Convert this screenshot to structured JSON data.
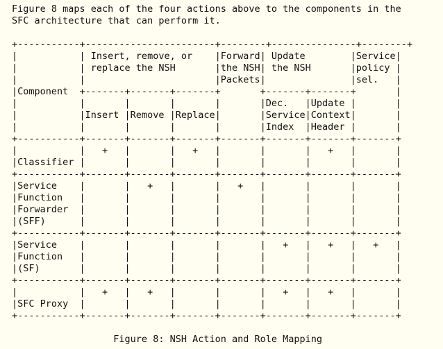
{
  "intro": "Figure 8 maps each of the four actions above to the components in the\nSFC architecture that can perform it.",
  "diagram": "+-----------+-----------------------+--------+---------------+--------+\n|           | Insert, remove, or    |Forward| Update        |Service|\n|           | replace the NSH       |the NSH| the NSH       |policy |\n|           |                       |Packets|               |sel.   |\n|Component  +-------+-------+-------+       +-------+-------+       |\n|           |       |       |       |       |Dec.   |Update |       |\n|           |Insert |Remove |Replace|       |Service|Context|       |\n|           |       |       |       |       |Index  |Header |       |\n+-----------+-------+-------+-------+-------+-------+-------+-------+\n|           |   +   |       |   +   |       |       |   +   |       |\n|Classifier |       |       |       |       |       |       |       |\n+-----------+-------+-------+-------+-------+-------+-------+-------+\n|Service    |       |   +   |       |   +   |       |       |       |\n|Function   |       |       |       |       |       |       |       |\n|Forwarder  |       |       |       |       |       |       |       |\n|(SFF)      |       |       |       |       |       |       |       |\n+-----------+-------+-------+-------+-------+-------+-------+-------+\n|Service    |       |       |       |       |   +   |   +   |   +   |\n|Function   |       |       |       |       |       |       |       |\n|(SF)       |       |       |       |       |       |       |       |\n+-----------+-------+-------+-------+-------+-------+-------+-------+\n|           |   +   |   +   |       |       |   +   |   +   |       |\n|SFC Proxy  |       |       |       |       |       |       |       |\n+-----------+-------+-------+-------+-------+-------+-------+-------+",
  "caption": "                  Figure 8: NSH Action and Role Mapping"
}
